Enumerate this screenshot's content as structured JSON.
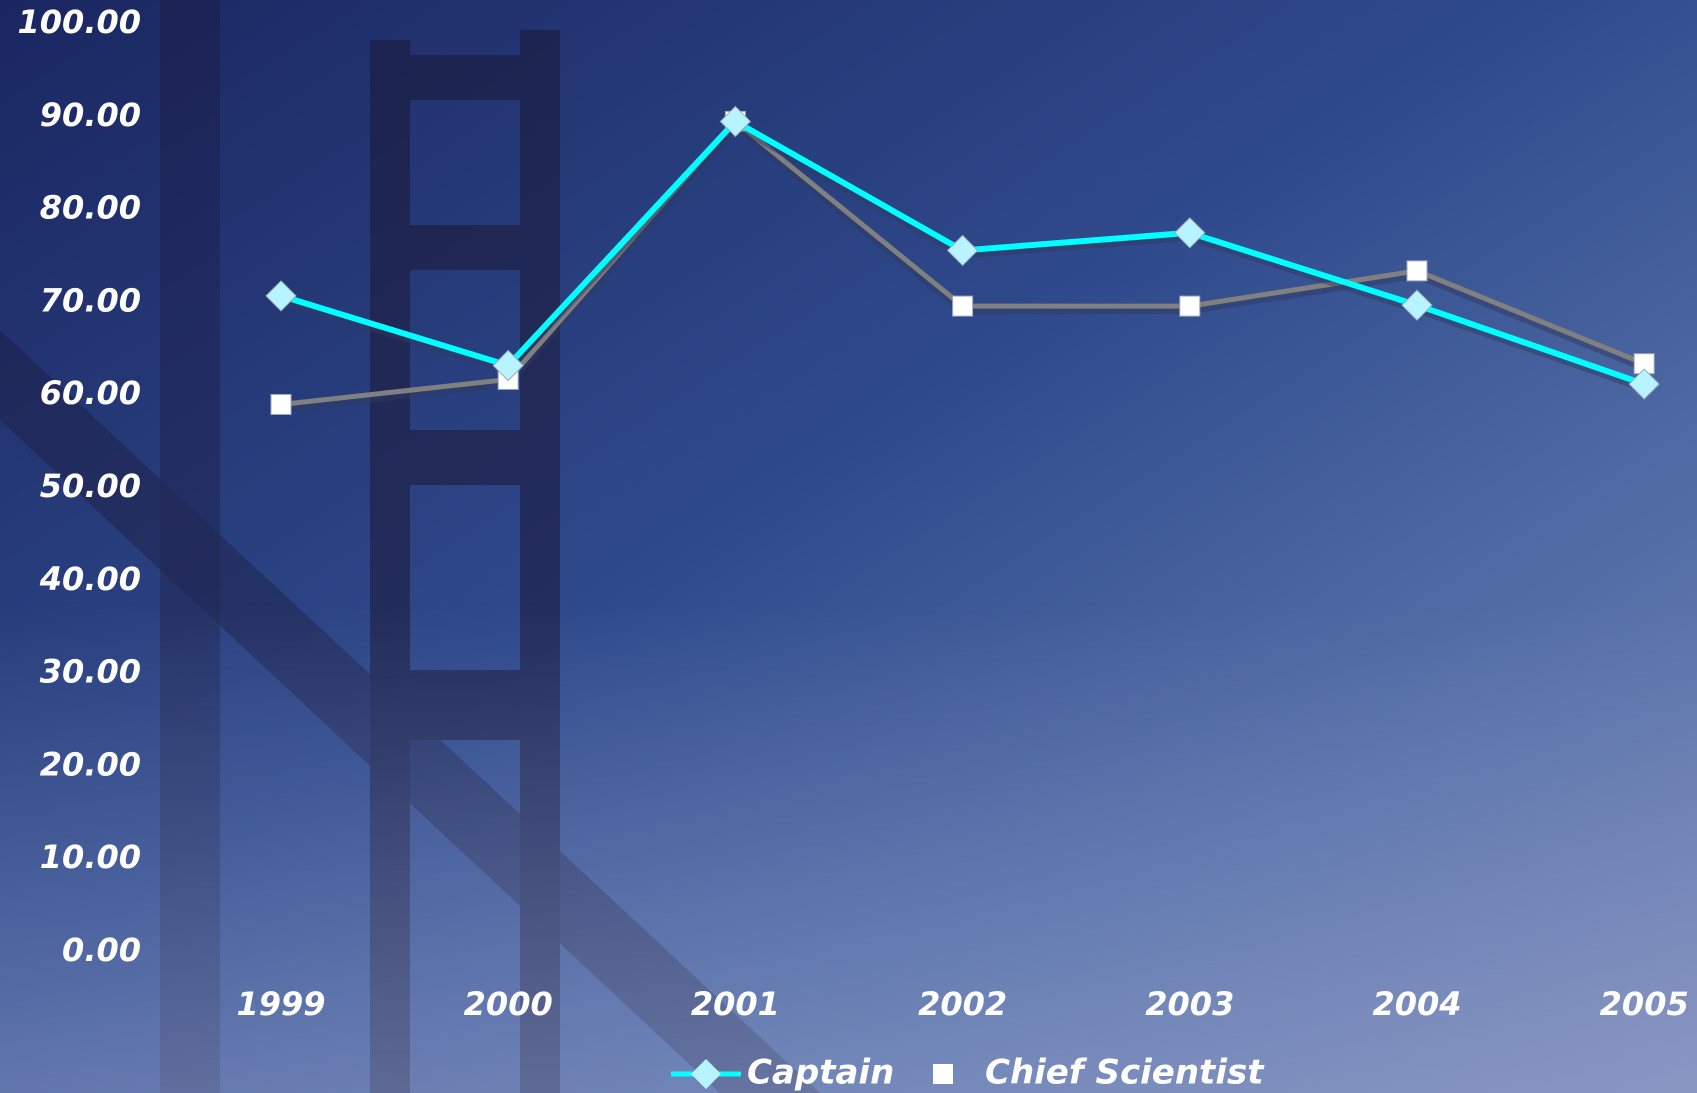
{
  "chart_data": {
    "type": "line",
    "categories": [
      "1999",
      "2000",
      "2001",
      "2002",
      "2003",
      "2004",
      "2005"
    ],
    "series": [
      {
        "name": "Captain",
        "color": "#00ffff",
        "marker": "diamond",
        "values": [
          70.7,
          63.2,
          89.5,
          75.6,
          77.5,
          69.7,
          61.2
        ]
      },
      {
        "name": "Chief Scientist",
        "color": "#808080",
        "marker": "square",
        "values": [
          59.0,
          61.7,
          89.5,
          69.6,
          69.6,
          73.4,
          63.4
        ]
      }
    ],
    "ylim": [
      0,
      100
    ],
    "yticks": [
      {
        "value": 0,
        "label": "0.00"
      },
      {
        "value": 10,
        "label": "10.00"
      },
      {
        "value": 20,
        "label": "20.00"
      },
      {
        "value": 30,
        "label": "30.00"
      },
      {
        "value": 40,
        "label": "40.00"
      },
      {
        "value": 50,
        "label": "50.00"
      },
      {
        "value": 60,
        "label": "60.00"
      },
      {
        "value": 70,
        "label": "70.00"
      },
      {
        "value": 80,
        "label": "80.00"
      },
      {
        "value": 90,
        "label": "90.00"
      },
      {
        "value": 100,
        "label": "100.00"
      }
    ],
    "grid": false,
    "legend": "bottom"
  }
}
